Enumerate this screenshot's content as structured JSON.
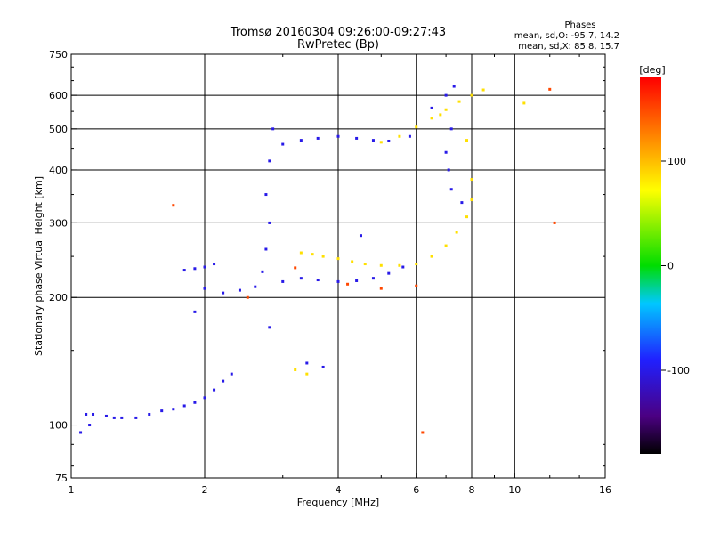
{
  "chart_data": {
    "type": "scatter",
    "title": "Tromsø 20160304 09:26:00-09:27:43",
    "subtitle": "RwPretec (Bp)",
    "xlabel": "Frequency [MHz]",
    "ylabel": "Stationary phase Virtual Height [km]",
    "x_scale": "log",
    "y_scale": "log",
    "xlim": [
      1,
      16
    ],
    "ylim": [
      75,
      750
    ],
    "x_ticks": [
      1,
      2,
      4,
      6,
      8,
      10,
      16
    ],
    "x_tick_labels": [
      "1",
      "2",
      "4",
      "6",
      "8",
      "10",
      "16"
    ],
    "y_ticks": [
      75,
      100,
      200,
      300,
      400,
      500,
      600,
      750
    ],
    "y_tick_labels": [
      "75",
      "100",
      "200",
      "300",
      "400",
      "500",
      "600",
      "750"
    ],
    "grid": true,
    "phase_stats": {
      "title": "Phases",
      "line_o": "mean, sd,O: -95.7, 14.2",
      "line_x": "mean, sd,X:  85.8, 15.7"
    },
    "colorbar": {
      "label": "[deg]",
      "min": -180,
      "max": 180,
      "ticks": [
        100,
        0,
        -100
      ],
      "tick_labels": [
        "100",
        "0",
        "-100"
      ]
    },
    "series": [
      {
        "mode": "O",
        "phase": -100,
        "points": [
          [
            1.05,
            96
          ],
          [
            1.08,
            106
          ],
          [
            1.12,
            106
          ],
          [
            1.2,
            105
          ],
          [
            1.3,
            104
          ],
          [
            1.4,
            104
          ],
          [
            1.5,
            106
          ],
          [
            1.6,
            108
          ],
          [
            1.7,
            109
          ],
          [
            1.8,
            111
          ],
          [
            1.9,
            113
          ],
          [
            2.0,
            116
          ],
          [
            2.1,
            121
          ],
          [
            2.2,
            127
          ],
          [
            2.3,
            132
          ],
          [
            1.8,
            232
          ],
          [
            1.9,
            234
          ],
          [
            2.0,
            236
          ],
          [
            2.1,
            240
          ],
          [
            1.9,
            185
          ],
          [
            2.0,
            210
          ],
          [
            2.2,
            205
          ],
          [
            2.4,
            208
          ],
          [
            2.6,
            212
          ],
          [
            2.7,
            230
          ],
          [
            2.75,
            260
          ],
          [
            2.8,
            300
          ],
          [
            2.75,
            350
          ],
          [
            2.8,
            420
          ],
          [
            2.85,
            500
          ],
          [
            2.8,
            170
          ],
          [
            3.0,
            218
          ],
          [
            3.3,
            222
          ],
          [
            3.6,
            220
          ],
          [
            4.0,
            218
          ],
          [
            4.4,
            219
          ],
          [
            4.8,
            222
          ],
          [
            5.2,
            228
          ],
          [
            5.6,
            236
          ],
          [
            3.0,
            460
          ],
          [
            3.3,
            470
          ],
          [
            3.6,
            475
          ],
          [
            4.0,
            480
          ],
          [
            4.4,
            475
          ],
          [
            4.8,
            470
          ],
          [
            5.2,
            468
          ],
          [
            5.8,
            480
          ],
          [
            6.5,
            560
          ],
          [
            7.0,
            600
          ],
          [
            7.3,
            630
          ],
          [
            7.2,
            500
          ],
          [
            7.0,
            440
          ],
          [
            7.1,
            400
          ],
          [
            7.2,
            360
          ],
          [
            7.6,
            335
          ],
          [
            3.4,
            140
          ],
          [
            3.7,
            137
          ],
          [
            4.5,
            280
          ],
          [
            1.25,
            104
          ],
          [
            1.1,
            100
          ]
        ]
      },
      {
        "mode": "X",
        "phase": 85,
        "points": [
          [
            3.3,
            255
          ],
          [
            3.5,
            253
          ],
          [
            3.7,
            250
          ],
          [
            4.0,
            247
          ],
          [
            4.3,
            243
          ],
          [
            4.6,
            240
          ],
          [
            5.0,
            238
          ],
          [
            5.5,
            238
          ],
          [
            6.0,
            240
          ],
          [
            6.5,
            250
          ],
          [
            7.0,
            265
          ],
          [
            7.4,
            285
          ],
          [
            7.8,
            310
          ],
          [
            8.0,
            340
          ],
          [
            8.0,
            380
          ],
          [
            5.0,
            465
          ],
          [
            5.5,
            480
          ],
          [
            6.0,
            505
          ],
          [
            6.5,
            530
          ],
          [
            7.0,
            555
          ],
          [
            7.5,
            580
          ],
          [
            8.0,
            600
          ],
          [
            3.2,
            135
          ],
          [
            3.4,
            132
          ],
          [
            6.8,
            540
          ],
          [
            7.8,
            470
          ],
          [
            8.5,
            618
          ],
          [
            10.5,
            575
          ]
        ]
      },
      {
        "mode": "scattered",
        "phase": 150,
        "points": [
          [
            1.7,
            330
          ],
          [
            2.5,
            200
          ],
          [
            3.2,
            235
          ],
          [
            4.2,
            215
          ],
          [
            6.2,
            96
          ],
          [
            5.0,
            210
          ],
          [
            6.0,
            213
          ],
          [
            12.0,
            620
          ],
          [
            12.3,
            300
          ]
        ]
      }
    ]
  }
}
